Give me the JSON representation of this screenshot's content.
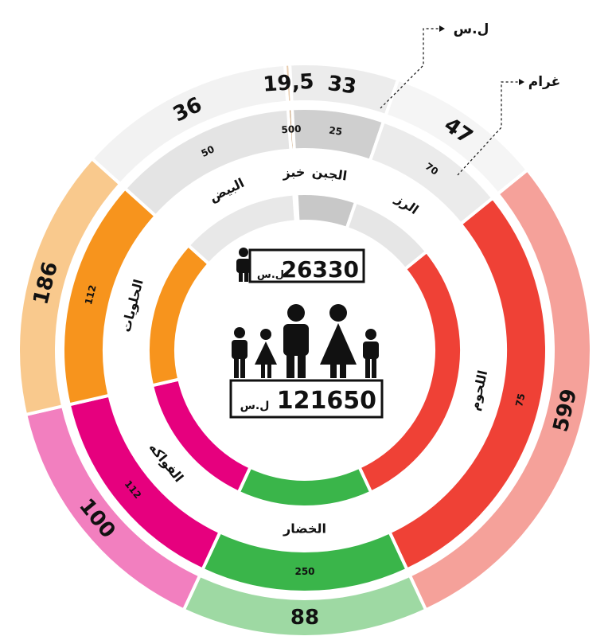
{
  "chart_data": {
    "type": "pie",
    "units": {
      "price": "ل.س",
      "weight": "غرام"
    },
    "categories": [
      {
        "name": "خبز",
        "quantity": "500",
        "price": "19,5",
        "share": 1,
        "colors": {
          "inner": "#c49a6c",
          "mid": "#c49a6c",
          "outer": "#e8cdb0"
        }
      },
      {
        "name": "الجبن",
        "quantity": "25",
        "price": "33",
        "share": 22,
        "colors": {
          "inner": "#c8c8c8",
          "mid": "#cfcfcf",
          "outer": "#ececec"
        }
      },
      {
        "name": "الرز",
        "quantity": "70",
        "price": "47",
        "share": 32,
        "colors": {
          "inner": "#e6e6e6",
          "mid": "#ebebeb",
          "outer": "#f5f5f5"
        }
      },
      {
        "name": "اللحوم",
        "quantity": "75",
        "price": "599",
        "share": 104,
        "colors": {
          "inner": "#ef4136",
          "mid": "#ef4136",
          "outer": "#f5a19a"
        }
      },
      {
        "name": "الخضار",
        "quantity": "250",
        "price": "88",
        "share": 50,
        "colors": {
          "inner": "#3ab54a",
          "mid": "#3ab54a",
          "outer": "#9ed9a3"
        }
      },
      {
        "name": "الفواكه",
        "quantity": "112",
        "price": "100",
        "share": 52,
        "colors": {
          "inner": "#e6007e",
          "mid": "#e6007e",
          "outer": "#f27fbf"
        }
      },
      {
        "name": "الحلويات",
        "quantity": "112",
        "price": "186",
        "share": 55,
        "colors": {
          "inner": "#f7941d",
          "mid": "#f7941d",
          "outer": "#f9c98d"
        }
      },
      {
        "name": "البيض",
        "quantity": "50",
        "price": "36",
        "share": 44,
        "colors": {
          "inner": "#e8e8e8",
          "mid": "#e4e4e4",
          "outer": "#f2f2f2"
        }
      }
    ],
    "totals": [
      {
        "label": "individual",
        "value": "26330",
        "currency": "ل.س"
      },
      {
        "label": "family",
        "value": "121650",
        "currency": "ل.س"
      }
    ]
  }
}
